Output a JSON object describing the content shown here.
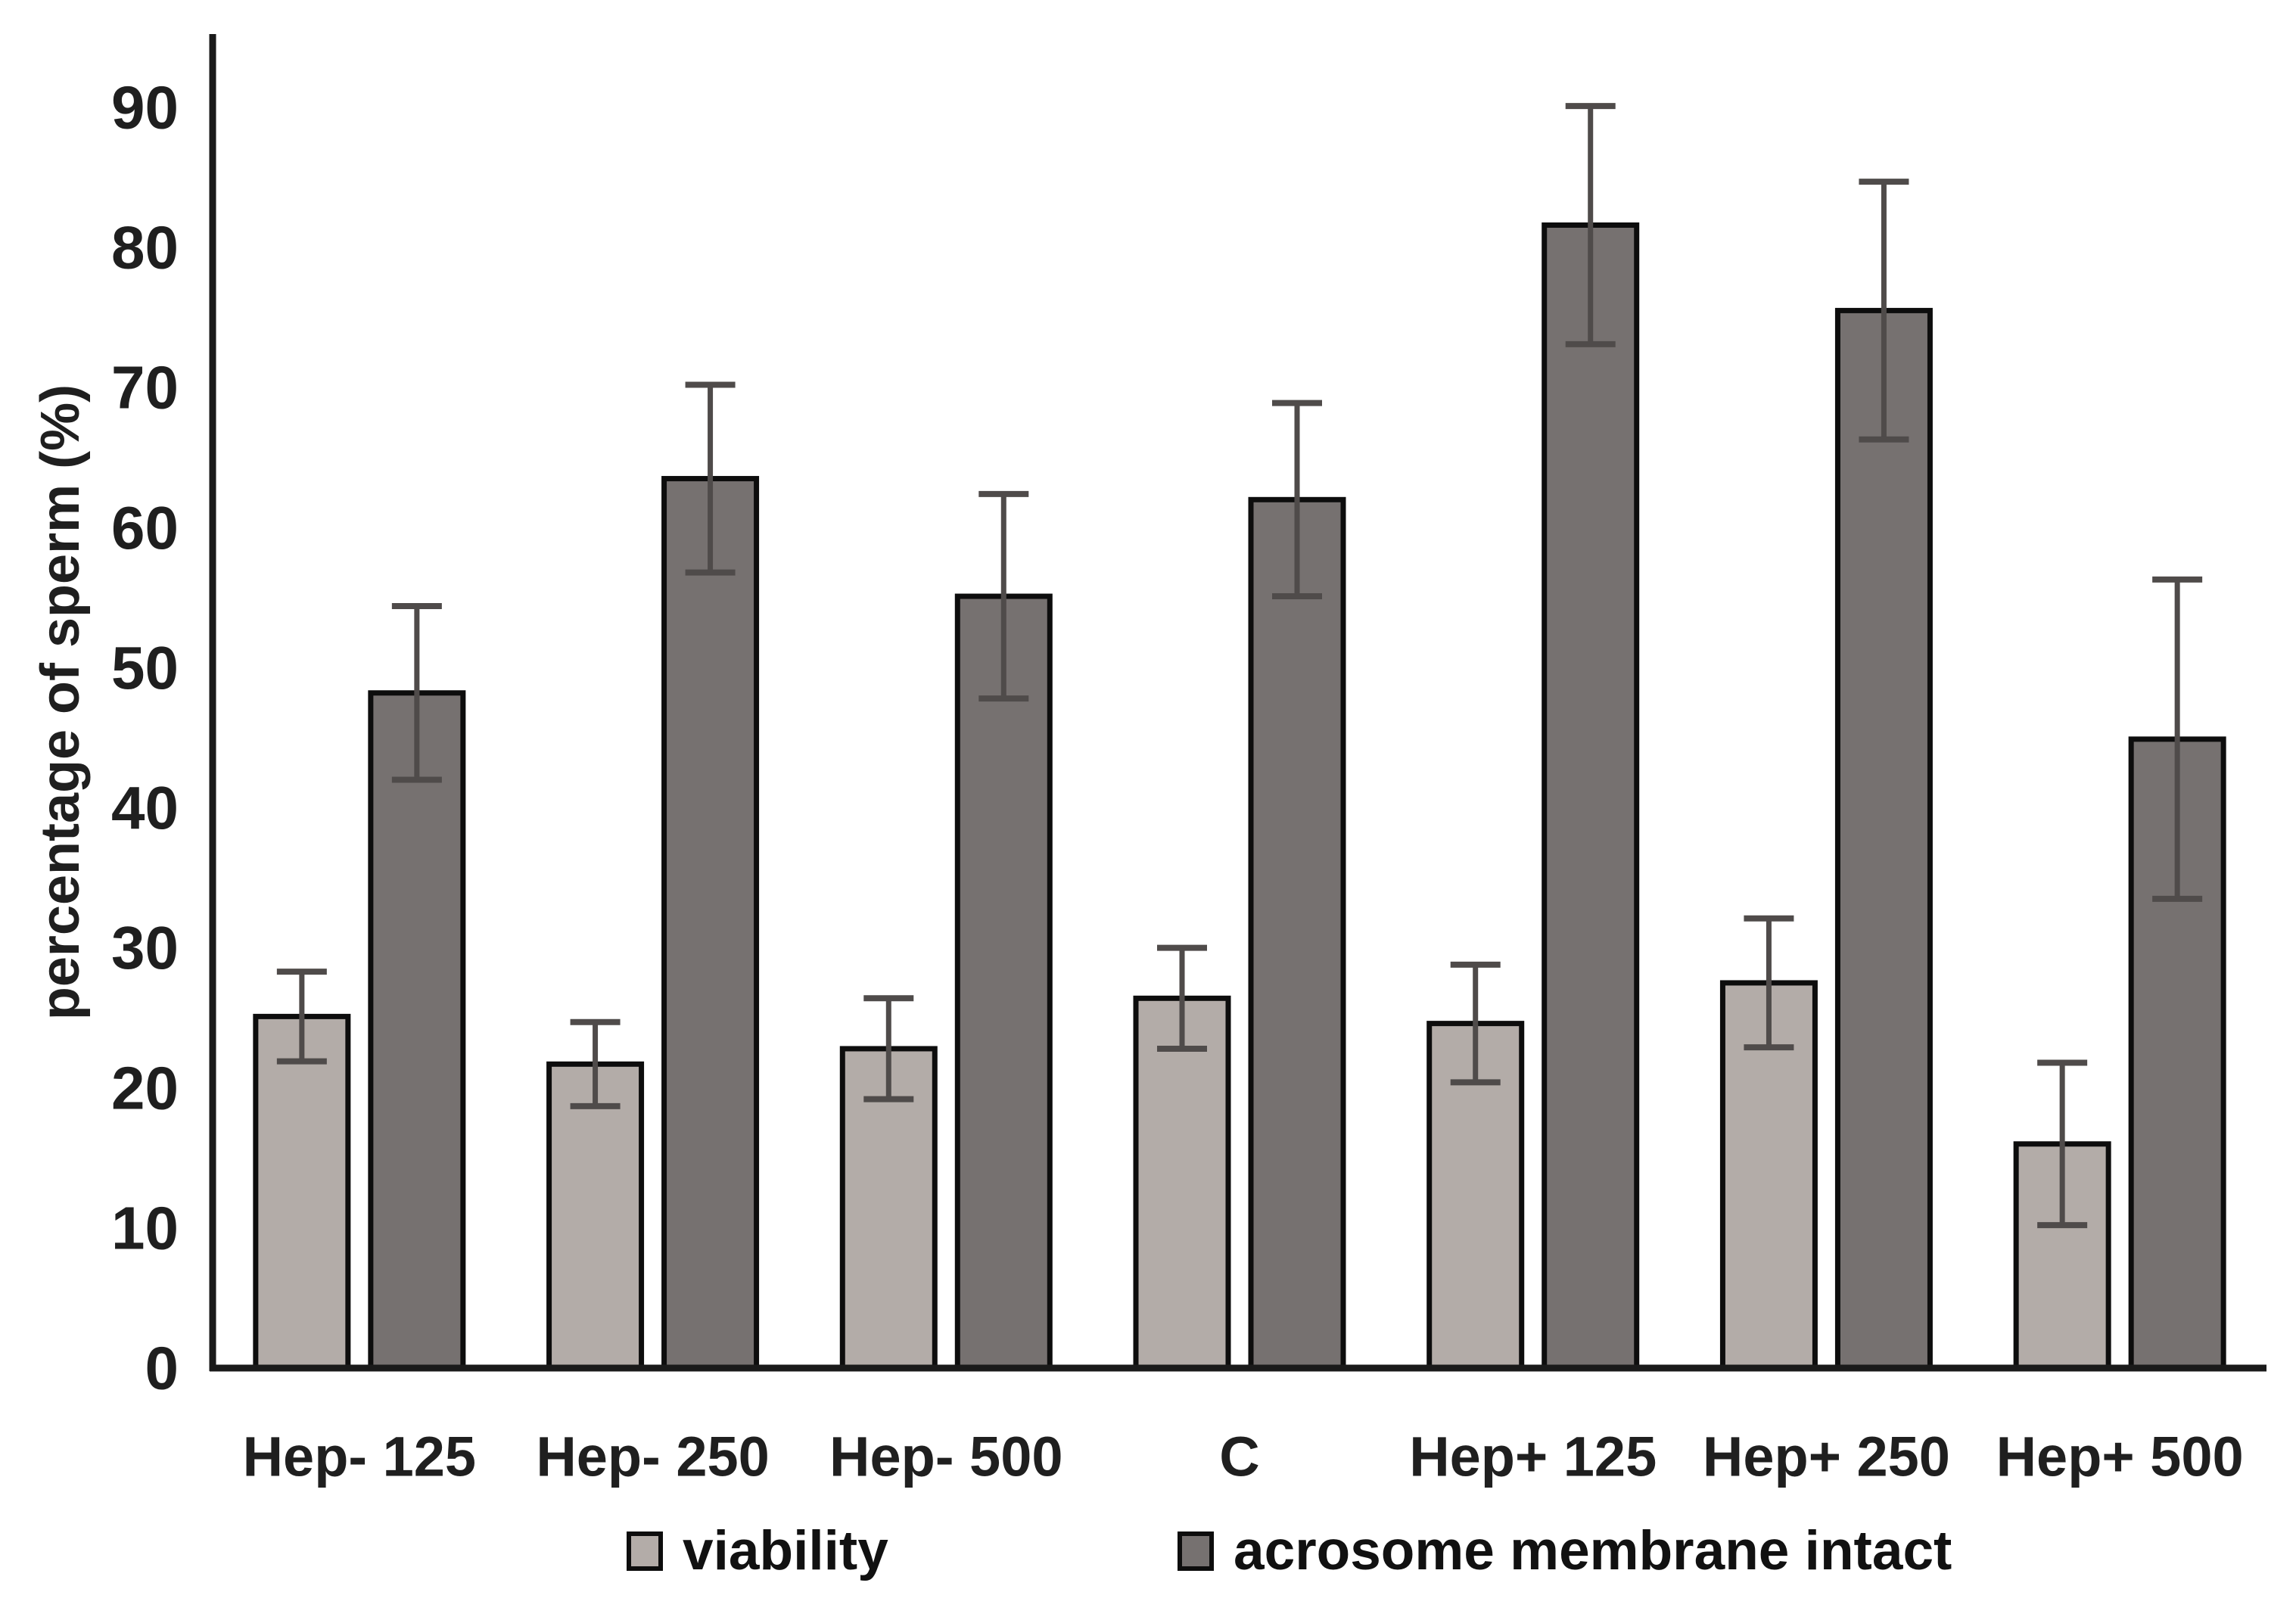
{
  "chart_data": {
    "type": "bar",
    "title": "",
    "xlabel": "",
    "ylabel": "percentage of sperm (%)",
    "ylim": [
      0,
      95
    ],
    "y_ticks": [
      0,
      10,
      20,
      30,
      40,
      50,
      60,
      70,
      80,
      90
    ],
    "grid": false,
    "legend_position": "bottom",
    "categories": [
      "Hep- 125",
      "Hep- 250",
      "Hep- 500",
      "C",
      "Hep+ 125",
      "Hep+ 250",
      "Hep+ 500"
    ],
    "series": [
      {
        "name": "viability",
        "color": "#b3aca8",
        "values": [
          25.1,
          21.7,
          22.8,
          26.4,
          24.6,
          27.5,
          16.0
        ],
        "errors": [
          3.2,
          3.0,
          3.6,
          3.6,
          4.2,
          4.6,
          5.8
        ]
      },
      {
        "name": "acrosome membrane intact",
        "color": "#767170",
        "values": [
          48.2,
          63.5,
          55.1,
          62.0,
          81.6,
          75.5,
          44.9
        ],
        "errors": [
          6.2,
          6.7,
          7.3,
          6.9,
          8.5,
          9.2,
          11.4
        ]
      }
    ]
  },
  "style": {
    "background": "#ffffff",
    "bar_outline_color": "#0d0d0d",
    "error_bar_color": "#4f4b4a",
    "axis_color": "#1a1a1a",
    "text_color": "#1f1f1f"
  }
}
